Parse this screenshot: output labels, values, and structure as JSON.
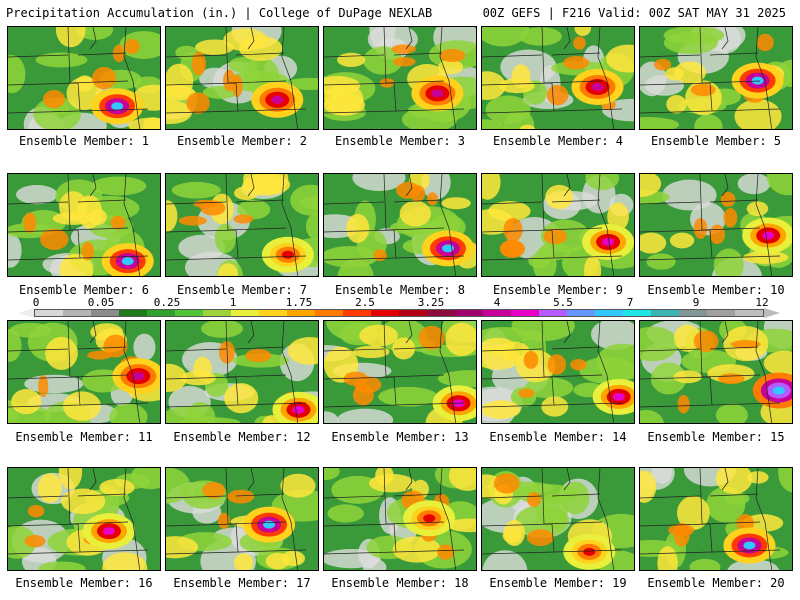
{
  "header": {
    "left": "Precipitation Accumulation (in.) | College of DuPage NEXLAB",
    "right": "00Z GEFS | F216 Valid: 00Z SAT MAY 31 2025"
  },
  "members": [
    {
      "label": "Ensemble Member: 1",
      "hotspot": "magenta-cyan"
    },
    {
      "label": "Ensemble Member: 2",
      "hotspot": "red-magenta"
    },
    {
      "label": "Ensemble Member: 3",
      "hotspot": "red-magenta"
    },
    {
      "label": "Ensemble Member: 4",
      "hotspot": "red-magenta"
    },
    {
      "label": "Ensemble Member: 5",
      "hotspot": "magenta-cyan"
    },
    {
      "label": "Ensemble Member: 6",
      "hotspot": "magenta-cyan"
    },
    {
      "label": "Ensemble Member: 7",
      "hotspot": "red"
    },
    {
      "label": "Ensemble Member: 8",
      "hotspot": "magenta-cyan"
    },
    {
      "label": "Ensemble Member: 9",
      "hotspot": "magenta"
    },
    {
      "label": "Ensemble Member: 10",
      "hotspot": "magenta"
    },
    {
      "label": "Ensemble Member: 11",
      "hotspot": "red-magenta"
    },
    {
      "label": "Ensemble Member: 12",
      "hotspot": "magenta"
    },
    {
      "label": "Ensemble Member: 13",
      "hotspot": "magenta"
    },
    {
      "label": "Ensemble Member: 14",
      "hotspot": "magenta"
    },
    {
      "label": "Ensemble Member: 15",
      "hotspot": "cyan"
    },
    {
      "label": "Ensemble Member: 16",
      "hotspot": "magenta"
    },
    {
      "label": "Ensemble Member: 17",
      "hotspot": "magenta-cyan"
    },
    {
      "label": "Ensemble Member: 18",
      "hotspot": "red"
    },
    {
      "label": "Ensemble Member: 19",
      "hotspot": "red"
    },
    {
      "label": "Ensemble Member: 20",
      "hotspot": "magenta-cyan"
    }
  ],
  "colorbar": {
    "ticks": [
      "0",
      "0.05",
      "0.25",
      "1",
      "1.75",
      "2.5",
      "3.25",
      "4",
      "5.5",
      "7",
      "9",
      "12"
    ],
    "colors": [
      "#d8d8d8",
      "#b4b4b4",
      "#8c8c8c",
      "#1c7a1c",
      "#2ea02e",
      "#52c43a",
      "#9ad43a",
      "#e8f03c",
      "#ffd21e",
      "#ffa500",
      "#ff7a00",
      "#ff3c00",
      "#e60000",
      "#b40014",
      "#8c0a3c",
      "#a0006e",
      "#c8009a",
      "#e600c8",
      "#b45aff",
      "#6496ff",
      "#32c8ff",
      "#1ee6e6",
      "#3cb4b4",
      "#829696",
      "#a0a0a0",
      "#bebebe"
    ]
  }
}
